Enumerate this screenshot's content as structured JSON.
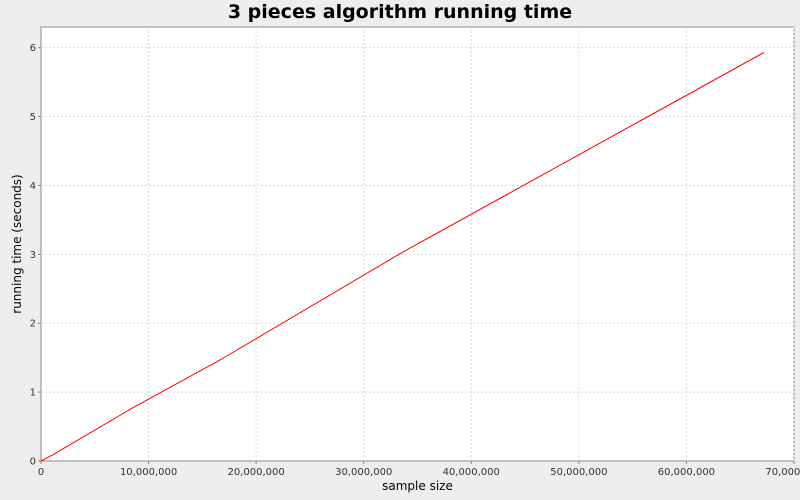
{
  "chart_data": {
    "type": "line",
    "title": "3 pieces algorithm running time",
    "xlabel": "sample size",
    "ylabel": "running time (seconds)",
    "xlim": [
      0,
      70000000
    ],
    "ylim": [
      0,
      6.3
    ],
    "grid": true,
    "legend": "none",
    "x_ticks": [
      0,
      10000000,
      20000000,
      30000000,
      40000000,
      50000000,
      60000000,
      70000000
    ],
    "x_tick_labels": [
      "0",
      "10,000,000",
      "20,000,000",
      "30,000,000",
      "40,000,000",
      "50,000,000",
      "60,000,000",
      "70,000,000"
    ],
    "y_ticks": [
      0,
      1,
      2,
      3,
      4,
      5,
      6
    ],
    "y_tick_labels": [
      "0",
      "1",
      "2",
      "3",
      "4",
      "5",
      "6"
    ],
    "series": [
      {
        "color": "#ff0000",
        "x": [
          0,
          1100000,
          8400000,
          16800000,
          33600000,
          67200000
        ],
        "y": [
          0,
          0.09,
          0.76,
          1.48,
          3.03,
          5.93
        ]
      }
    ]
  }
}
